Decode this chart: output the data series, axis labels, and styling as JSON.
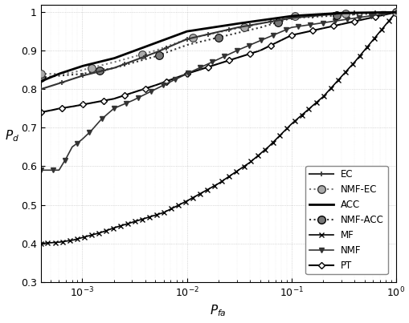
{
  "xlabel": "P_{fa}",
  "ylabel": "P_d",
  "ylim": [
    0.3,
    1.02
  ],
  "yticks": [
    0.3,
    0.4,
    0.5,
    0.6,
    0.7,
    0.8,
    0.9,
    1.0
  ],
  "xmin": 0.0004,
  "xmax": 1.0,
  "background_color": "#ffffff",
  "legend_loc": "lower right"
}
